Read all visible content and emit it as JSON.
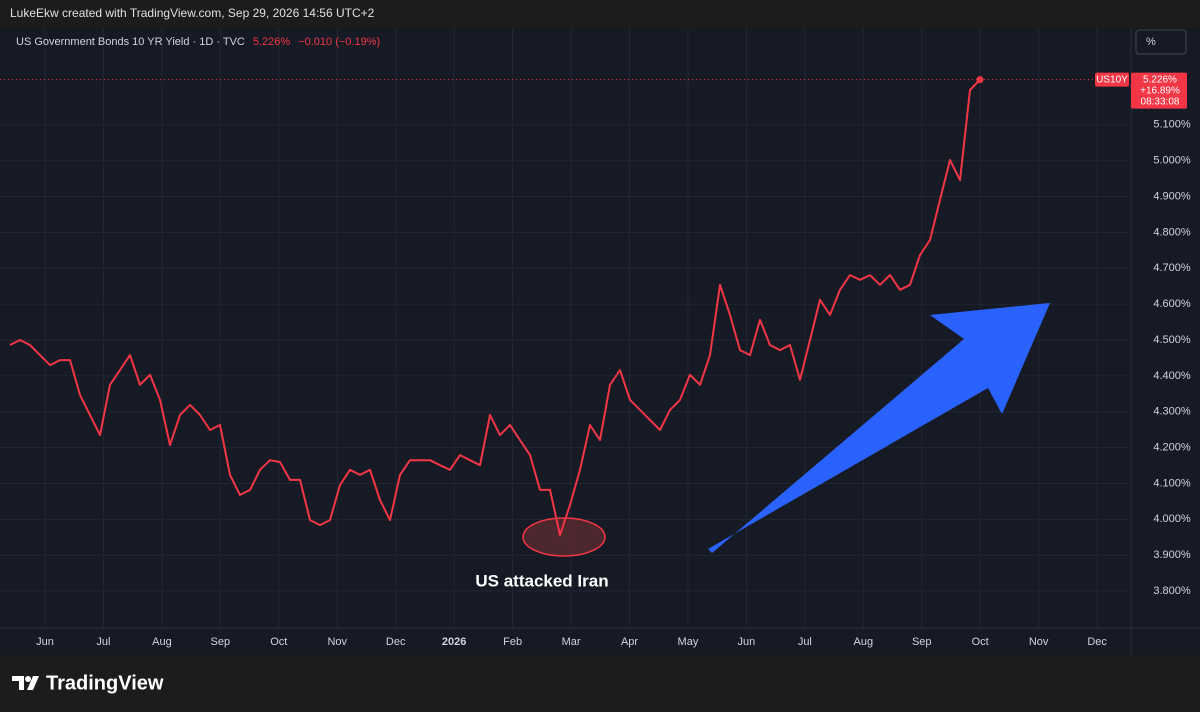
{
  "header": {
    "credit": "LukeEkw created with TradingView.com, Sep 29, 2026 14:56 UTC+2",
    "symbol": "US Government Bonds 10 YR Yield · 1D · TVC",
    "price": "5.226%",
    "change": "−0.010 (−0.19%)",
    "scale_button": "%"
  },
  "chart_data": {
    "type": "line",
    "series": [
      {
        "name": "US10Y",
        "color": "#f23645",
        "values": [
          4.486,
          4.5,
          4.486,
          4.458,
          4.43,
          4.444,
          4.444,
          4.347,
          4.291,
          4.235,
          4.375,
          4.416,
          4.458,
          4.375,
          4.403,
          4.333,
          4.207,
          4.291,
          4.319,
          4.291,
          4.249,
          4.263,
          4.124,
          4.068,
          4.082,
          4.138,
          4.165,
          4.16,
          4.11,
          4.11,
          3.998,
          3.984,
          3.998,
          4.096,
          4.138,
          4.124,
          4.138,
          4.054,
          3.998,
          4.124,
          4.165,
          4.165,
          4.165,
          4.151,
          4.138,
          4.179,
          4.165,
          4.151,
          4.291,
          4.235,
          4.263,
          4.221,
          4.179,
          4.082,
          4.082,
          3.956,
          4.04,
          4.138,
          4.263,
          4.221,
          4.375,
          4.416,
          4.333,
          4.305,
          4.277,
          4.249,
          4.305,
          4.333,
          4.403,
          4.375,
          4.458,
          4.654,
          4.57,
          4.472,
          4.458,
          4.556,
          4.486,
          4.472,
          4.486,
          4.389,
          4.5,
          4.612,
          4.57,
          4.64,
          4.681,
          4.668,
          4.681,
          4.654,
          4.681,
          4.64,
          4.654,
          4.737,
          4.779,
          4.891,
          5.002,
          4.946,
          5.197,
          5.226
        ]
      }
    ],
    "x_labels": [
      "Jun",
      "Jul",
      "Aug",
      "Sep",
      "Oct",
      "Nov",
      "Dec",
      "2026",
      "Feb",
      "Mar",
      "Apr",
      "May",
      "Jun",
      "Jul",
      "Aug",
      "Sep",
      "Oct",
      "Nov",
      "Dec"
    ],
    "ylim": [
      3.697,
      5.37
    ],
    "yticks": [
      {
        "value": 3.8,
        "label": "3.800%"
      },
      {
        "value": 3.9,
        "label": "3.900%"
      },
      {
        "value": 4.0,
        "label": "4.000%"
      },
      {
        "value": 4.1,
        "label": "4.100%"
      },
      {
        "value": 4.2,
        "label": "4.200%"
      },
      {
        "value": 4.3,
        "label": "4.300%"
      },
      {
        "value": 4.4,
        "label": "4.400%"
      },
      {
        "value": 4.5,
        "label": "4.500%"
      },
      {
        "value": 4.6,
        "label": "4.600%"
      },
      {
        "value": 4.7,
        "label": "4.700%"
      },
      {
        "value": 4.8,
        "label": "4.800%"
      },
      {
        "value": 4.9,
        "label": "4.900%"
      },
      {
        "value": 5.0,
        "label": "5.000%"
      },
      {
        "value": 5.1,
        "label": "5.100%"
      }
    ],
    "grid": true,
    "last_value_labels": [
      "5.226%",
      "+16.89%",
      "08:33:08"
    ],
    "annotation": "US attacked Iran"
  },
  "footer": {
    "brand": "TradingView"
  }
}
